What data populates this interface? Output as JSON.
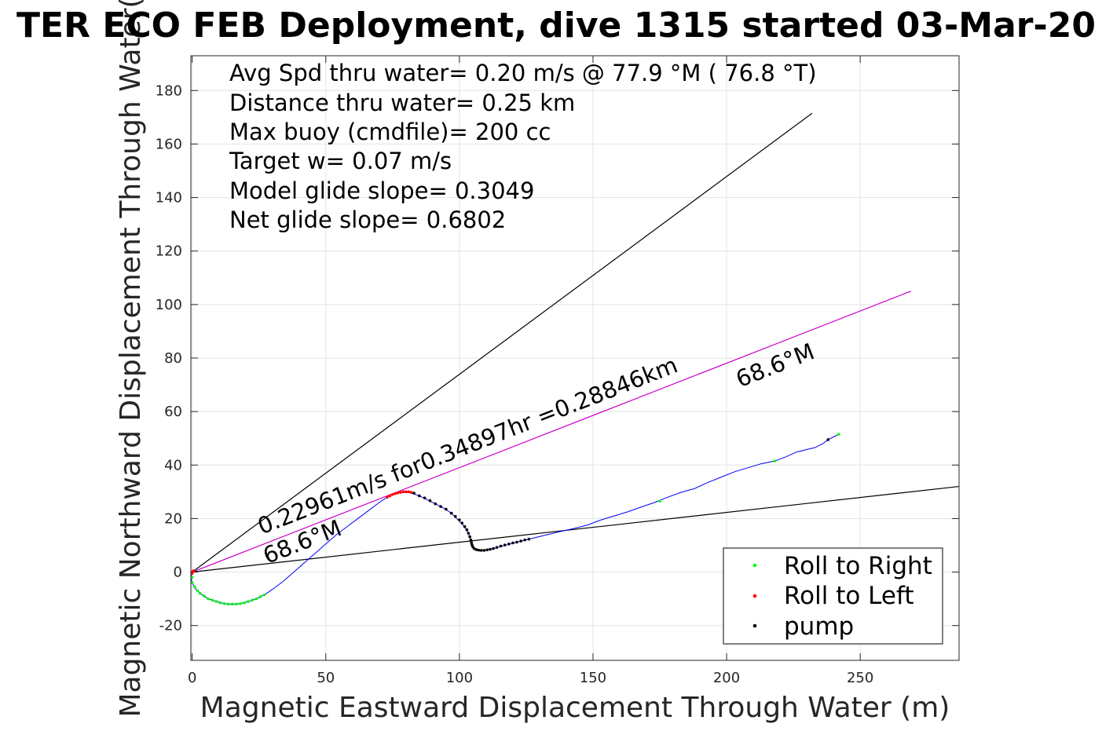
{
  "title": "TER ECO FEB Deployment, dive 1315 started 03-Mar-20",
  "chart_data": {
    "type": "scatter",
    "xlabel": "Magnetic Eastward Displacement Through Water (m)",
    "ylabel": "Magnetic Northward Displacement Through Water(",
    "xlim": [
      -0.5,
      287
    ],
    "ylim": [
      -33,
      193
    ],
    "x_ticks": [
      0,
      50,
      100,
      150,
      200,
      250
    ],
    "y_ticks": [
      -20,
      0,
      20,
      40,
      60,
      80,
      100,
      120,
      140,
      160,
      180
    ],
    "x_tick_labels": [
      "0",
      "50",
      "100",
      "150",
      "200",
      "250"
    ],
    "y_tick_labels": [
      "-20",
      "0",
      "20",
      "40",
      "60",
      "80",
      "100",
      "120",
      "140",
      "160",
      "180"
    ],
    "grid": true,
    "legend_position": "bottom-right",
    "stats_text": [
      "Avg Spd thru water=  0.20 m/s @  77.9 °M ( 76.8 °T)",
      "Distance thru water=  0.25 km",
      "Max buoy (cmdfile)= 200 cc",
      "Target w= 0.07 m/s",
      "Model glide slope= 0.3049",
      "Net glide slope= 0.6802"
    ],
    "annotations": [
      {
        "text": "0.22961m/s for0.34897hr =0.28846km",
        "x": 26,
        "y": 14,
        "angle_deg": 21.4
      },
      {
        "text": "68.6°M",
        "x": 28,
        "y": 3,
        "angle_deg": 21.4
      },
      {
        "text": "68.6°M",
        "x": 205,
        "y": 69,
        "angle_deg": 21.4
      }
    ],
    "reference_lines": [
      {
        "name": "upper bound",
        "color": "#000000",
        "points": [
          [
            0,
            0
          ],
          [
            232,
            171.5
          ]
        ]
      },
      {
        "name": "heading 68.6°M",
        "color": "#cc00cc",
        "points": [
          [
            0,
            0
          ],
          [
            269,
            105
          ]
        ]
      },
      {
        "name": "lower bound",
        "color": "#000000",
        "points": [
          [
            0,
            0
          ],
          [
            287,
            32
          ]
        ]
      }
    ],
    "track": {
      "name": "track",
      "color": "#0000ff",
      "points": [
        [
          0,
          0
        ],
        [
          -0.5,
          -2
        ],
        [
          0,
          -4
        ],
        [
          1,
          -6
        ],
        [
          3,
          -8
        ],
        [
          6,
          -10
        ],
        [
          9,
          -11
        ],
        [
          12,
          -11.8
        ],
        [
          15,
          -12
        ],
        [
          18,
          -11.8
        ],
        [
          21,
          -11
        ],
        [
          24,
          -10
        ],
        [
          27,
          -8.5
        ],
        [
          30,
          -6.5
        ],
        [
          34,
          -3.5
        ],
        [
          38,
          0
        ],
        [
          42,
          3.5
        ],
        [
          46,
          7
        ],
        [
          50,
          10.5
        ],
        [
          54,
          14
        ],
        [
          58,
          17
        ],
        [
          62,
          20
        ],
        [
          66,
          23
        ],
        [
          70,
          26
        ],
        [
          73,
          28
        ],
        [
          76,
          29.5
        ],
        [
          79,
          30
        ],
        [
          82,
          29.5
        ],
        [
          85,
          28.5
        ],
        [
          88,
          27
        ],
        [
          91,
          25.5
        ],
        [
          94,
          24
        ],
        [
          97,
          22
        ],
        [
          99,
          20
        ],
        [
          101,
          18
        ],
        [
          102.5,
          16
        ],
        [
          103.5,
          14
        ],
        [
          104.3,
          12
        ],
        [
          104.6,
          10.5
        ],
        [
          105,
          9
        ],
        [
          106.5,
          8.3
        ],
        [
          108.5,
          8.1
        ],
        [
          110.5,
          8.3
        ],
        [
          112.5,
          8.6
        ],
        [
          115,
          9.5
        ],
        [
          118,
          10.2
        ],
        [
          121,
          11
        ],
        [
          124,
          11.8
        ],
        [
          128,
          12.8
        ],
        [
          133,
          14
        ],
        [
          138,
          15.2
        ],
        [
          143,
          16.3
        ],
        [
          148,
          17.6
        ],
        [
          153,
          19.5
        ],
        [
          158,
          21
        ],
        [
          163,
          22.5
        ],
        [
          168,
          24.3
        ],
        [
          173,
          26
        ],
        [
          178,
          28
        ],
        [
          183,
          29.8
        ],
        [
          188,
          31.2
        ],
        [
          193,
          33.5
        ],
        [
          198,
          35.5
        ],
        [
          203,
          37.5
        ],
        [
          208,
          39
        ],
        [
          213,
          40.5
        ],
        [
          218,
          41.5
        ],
        [
          222,
          43
        ],
        [
          226,
          44.8
        ],
        [
          230,
          45.8
        ],
        [
          233,
          46.5
        ],
        [
          236,
          48
        ],
        [
          238,
          49.5
        ],
        [
          240,
          50.5
        ],
        [
          242,
          51.5
        ]
      ]
    },
    "series": [
      {
        "name": "Roll to Right",
        "color": "#00ff00",
        "points": [
          [
            0,
            -2
          ],
          [
            0,
            -4
          ],
          [
            1,
            -5.5
          ],
          [
            2,
            -7
          ],
          [
            3,
            -8
          ],
          [
            4.5,
            -9
          ],
          [
            6,
            -10
          ],
          [
            7.5,
            -10.5
          ],
          [
            9,
            -11
          ],
          [
            10.5,
            -11.5
          ],
          [
            12,
            -11.8
          ],
          [
            13.5,
            -12
          ],
          [
            15,
            -12
          ],
          [
            16.5,
            -12
          ],
          [
            18,
            -11.8
          ],
          [
            19.5,
            -11.5
          ],
          [
            21,
            -11
          ],
          [
            22.5,
            -10.5
          ],
          [
            24,
            -10
          ],
          [
            25.5,
            -9.2
          ],
          [
            27,
            -8.5
          ],
          [
            175,
            26.5
          ],
          [
            218,
            41.5
          ],
          [
            242,
            51.5
          ]
        ]
      },
      {
        "name": "Roll to Left",
        "color": "#ff0000",
        "points": [
          [
            0,
            0
          ],
          [
            0,
            -0.5
          ],
          [
            0.5,
            0.5
          ],
          [
            73,
            28
          ],
          [
            74,
            28.5
          ],
          [
            75,
            29
          ],
          [
            76,
            29.3
          ],
          [
            77,
            29.6
          ],
          [
            78,
            29.8
          ],
          [
            79,
            30
          ],
          [
            80,
            30
          ],
          [
            81,
            30
          ],
          [
            82,
            29.8
          ]
        ]
      },
      {
        "name": "pump",
        "color": "#000000",
        "points": [
          [
            83,
            29.5
          ],
          [
            85,
            28.5
          ],
          [
            87,
            27.7
          ],
          [
            89,
            26.7
          ],
          [
            91,
            25.5
          ],
          [
            93,
            24.5
          ],
          [
            95,
            23.5
          ],
          [
            97,
            22
          ],
          [
            98.5,
            20.8
          ],
          [
            100,
            19.5
          ],
          [
            101,
            18.3
          ],
          [
            102,
            17
          ],
          [
            102.8,
            15.8
          ],
          [
            103.4,
            14.5
          ],
          [
            103.9,
            13.2
          ],
          [
            104.3,
            12
          ],
          [
            104.5,
            11
          ],
          [
            104.7,
            10.2
          ],
          [
            105,
            9.5
          ],
          [
            105.5,
            8.8
          ],
          [
            106.3,
            8.4
          ],
          [
            107.2,
            8.2
          ],
          [
            108.2,
            8.1
          ],
          [
            109.3,
            8.1
          ],
          [
            110.4,
            8.3
          ],
          [
            111.5,
            8.5
          ],
          [
            112.7,
            8.8
          ],
          [
            114,
            9.2
          ],
          [
            115.5,
            9.7
          ],
          [
            117,
            10.1
          ],
          [
            118.5,
            10.5
          ],
          [
            120,
            10.9
          ],
          [
            121.5,
            11.2
          ],
          [
            123,
            11.6
          ],
          [
            124.5,
            12
          ],
          [
            126,
            12.3
          ],
          [
            238,
            49.5
          ]
        ]
      }
    ]
  }
}
